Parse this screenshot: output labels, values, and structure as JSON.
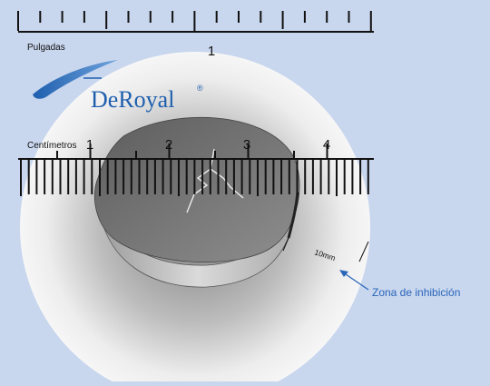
{
  "ruler_top": {
    "unit_label": "Pulgadas",
    "major_labels": [
      "1"
    ]
  },
  "brand": {
    "name": "DeRoyal",
    "registered": "®"
  },
  "ruler_bottom": {
    "unit_label": "Centímetros",
    "major_labels": [
      "1",
      "2",
      "3",
      "4"
    ]
  },
  "measurement": {
    "label": "10mm"
  },
  "callout": {
    "label": "Zona de inhibición"
  },
  "colors": {
    "background": "#c8d6ee",
    "callout_text": "#2a66b8",
    "brand_blue": "#1f5fae"
  }
}
